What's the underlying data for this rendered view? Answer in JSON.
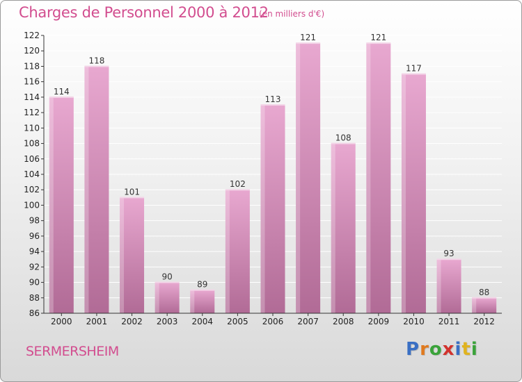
{
  "header": {
    "title": "Charges de Personnel 2000 à 2012",
    "subtitle": "(en milliers d'€)"
  },
  "footer": {
    "commune": "SERMERSHEIM",
    "logo_text": "Proxiti"
  },
  "colors": {
    "title": "#d24d8f",
    "bar_top": "#e8a8d0",
    "bar_bottom": "#b16b96",
    "grid": "#ffffff"
  },
  "chart_data": {
    "type": "bar",
    "categories": [
      "2000",
      "2001",
      "2002",
      "2003",
      "2004",
      "2005",
      "2006",
      "2007",
      "2008",
      "2009",
      "2010",
      "2011",
      "2012"
    ],
    "values": [
      114,
      118,
      101,
      90,
      89,
      102,
      113,
      121,
      108,
      121,
      117,
      93,
      88
    ],
    "title": "Charges de Personnel 2000 à 2012",
    "subtitle": "(en milliers d'€)",
    "ylim": [
      86,
      122
    ],
    "yticks": [
      86,
      88,
      90,
      92,
      94,
      96,
      98,
      100,
      102,
      104,
      106,
      108,
      110,
      112,
      114,
      116,
      118,
      120,
      122
    ],
    "grid": true,
    "data_labels": true
  }
}
